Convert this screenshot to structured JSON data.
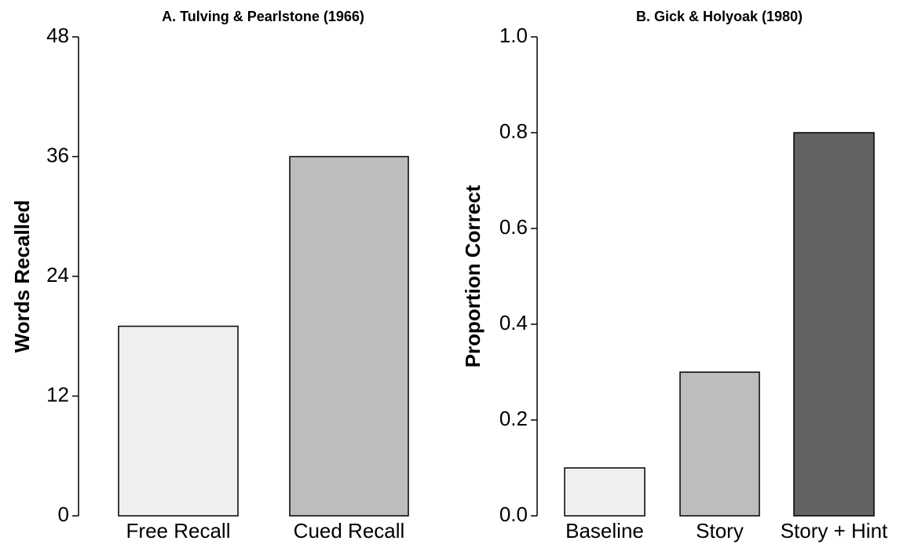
{
  "chart_data": [
    {
      "type": "bar",
      "title": "A. Tulving & Pearlstone (1966)",
      "y_label": "Words Recalled",
      "categories": [
        "Free Recall",
        "Cued Recall"
      ],
      "values": [
        19,
        36
      ],
      "colors": [
        "#efefef",
        "#bdbdbd"
      ],
      "ylim": [
        0,
        48
      ],
      "yticks": [
        0,
        12,
        24,
        36,
        48
      ]
    },
    {
      "type": "bar",
      "title": "B. Gick & Holyoak (1980)",
      "y_label": "Proportion Correct",
      "categories": [
        "Baseline",
        "Story",
        "Story + Hint"
      ],
      "values": [
        0.1,
        0.3,
        0.8
      ],
      "colors": [
        "#efefef",
        "#bdbdbd",
        "#636363"
      ],
      "ylim": [
        0,
        1
      ],
      "yticks": [
        {
          "value": 0,
          "label": "0.0"
        },
        0.2,
        0.4,
        0.6,
        0.8,
        {
          "value": 1,
          "label": "1.0"
        }
      ]
    }
  ]
}
